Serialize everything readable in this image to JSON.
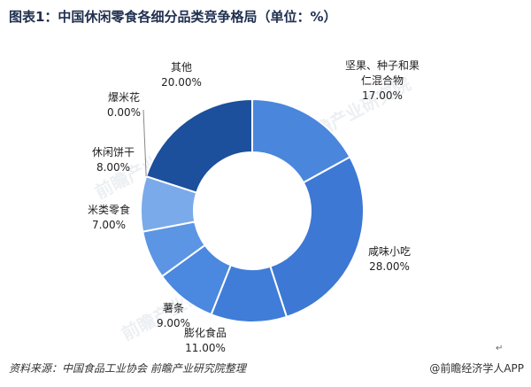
{
  "title": "图表1：中国休闲零食各细分品类竞争格局（单位：%）",
  "chart_data": {
    "type": "pie",
    "variant": "donut",
    "title": "图表1：中国休闲零食各细分品类竞争格局（单位：%）",
    "slices": [
      {
        "name": "坚果、种子和果仁混合物",
        "label_lines": [
          "坚果、种子和果",
          "仁混合物"
        ],
        "value": 17.0,
        "value_label": "17.00%",
        "color": "#4a86dc"
      },
      {
        "name": "咸味小吃",
        "label_lines": [
          "咸味小吃"
        ],
        "value": 28.0,
        "value_label": "28.00%",
        "color": "#3d78d4"
      },
      {
        "name": "膨化食品",
        "label_lines": [
          "膨化食品"
        ],
        "value": 11.0,
        "value_label": "11.00%",
        "color": "#3f7dd8"
      },
      {
        "name": "薯条",
        "label_lines": [
          "薯条"
        ],
        "value": 9.0,
        "value_label": "9.00%",
        "color": "#4b88df"
      },
      {
        "name": "米类零食",
        "label_lines": [
          "米类零食"
        ],
        "value": 7.0,
        "value_label": "7.00%",
        "color": "#5b95e4"
      },
      {
        "name": "休闲饼干",
        "label_lines": [
          "休闲饼干"
        ],
        "value": 8.0,
        "value_label": "8.00%",
        "color": "#7aaaea"
      },
      {
        "name": "爆米花",
        "label_lines": [
          "爆米花"
        ],
        "value": 0.0,
        "value_label": "0.00%",
        "color": "#5a8fd8"
      },
      {
        "name": "其他",
        "label_lines": [
          "其他"
        ],
        "value": 20.0,
        "value_label": "20.00%",
        "color": "#1c4f9c"
      }
    ]
  },
  "footer": {
    "source": "资料来源：中国食品工业协会 前瞻产业研究院整理",
    "brand": "@前瞻经济学人APP"
  },
  "watermark": "前瞻产业研究院"
}
